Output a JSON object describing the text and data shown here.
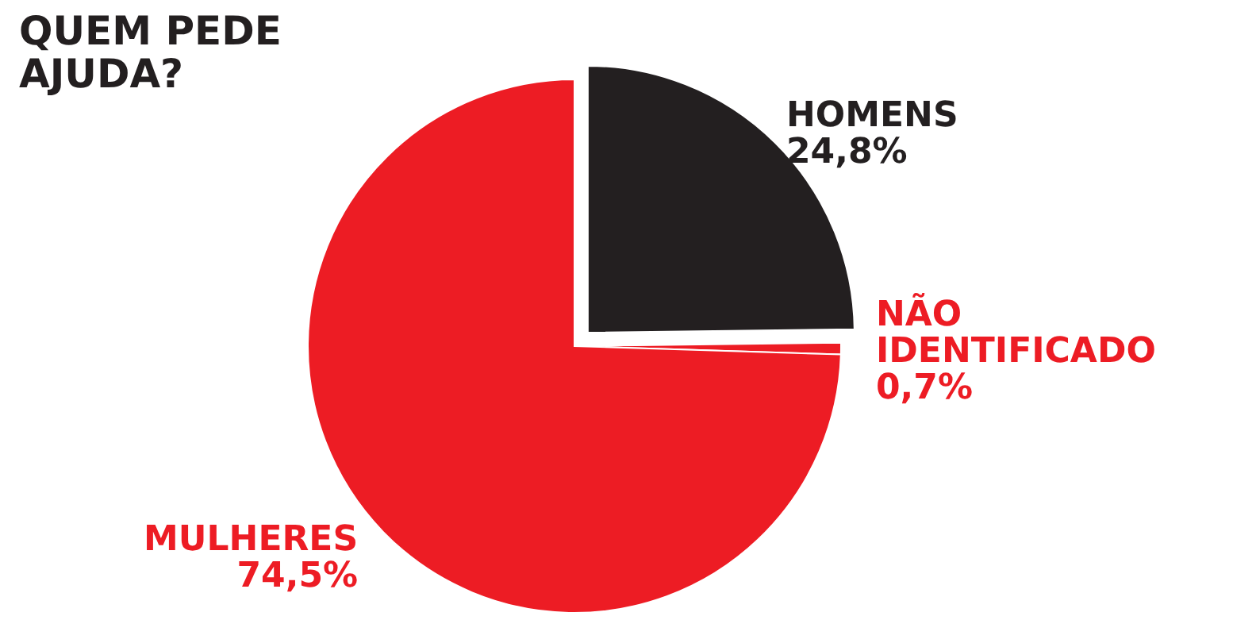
{
  "chart_data": {
    "type": "pie",
    "title": "QUEM PEDE AJUDA?",
    "categories": [
      "HOMENS",
      "NÃO IDENTIFICADO",
      "MULHERES"
    ],
    "values": [
      24.8,
      0.7,
      74.5
    ],
    "value_labels": [
      "24,8%",
      "0,7%",
      "74,5%"
    ],
    "colors": [
      "#231f20",
      "#ed1c24",
      "#ed1c24"
    ]
  }
}
